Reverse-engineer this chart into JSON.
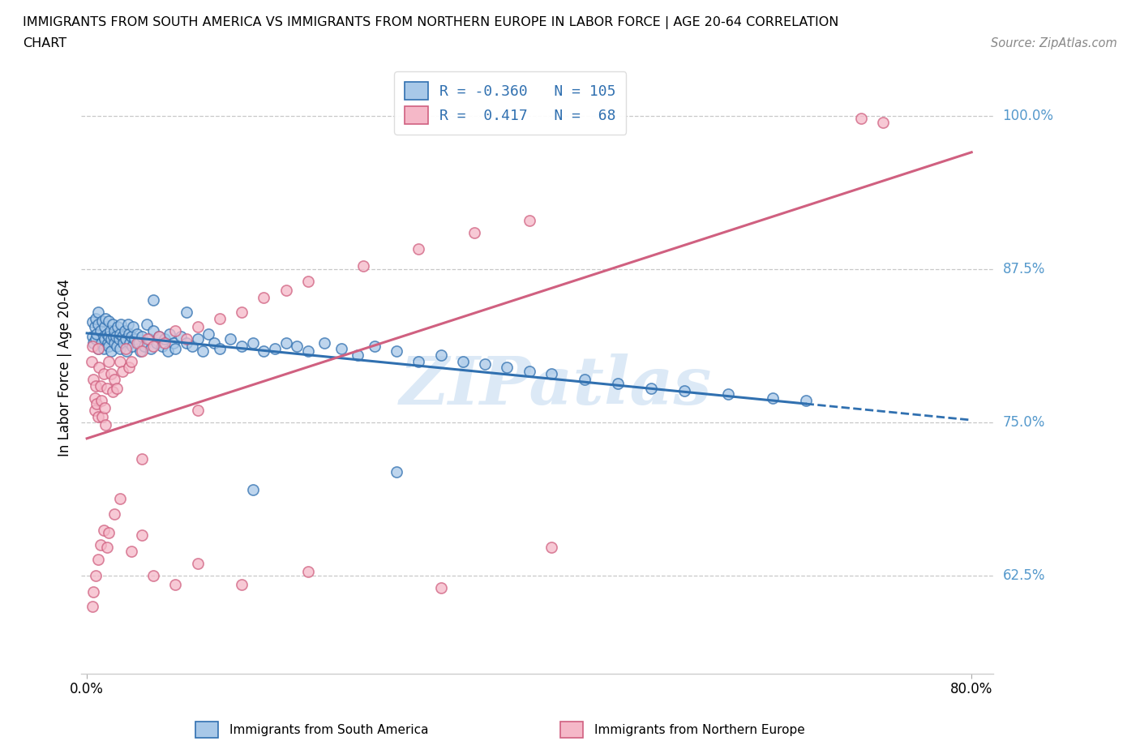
{
  "title_line1": "IMMIGRANTS FROM SOUTH AMERICA VS IMMIGRANTS FROM NORTHERN EUROPE IN LABOR FORCE | AGE 20-64 CORRELATION",
  "title_line2": "CHART",
  "source_text": "Source: ZipAtlas.com",
  "ylabel": "In Labor Force | Age 20-64",
  "xlim": [
    -0.005,
    0.82
  ],
  "ylim": [
    0.545,
    1.045
  ],
  "yticks": [
    0.625,
    0.75,
    0.875,
    1.0
  ],
  "ytick_labels": [
    "62.5%",
    "75.0%",
    "87.5%",
    "100.0%"
  ],
  "xtick_vals": [
    0.0,
    0.8
  ],
  "xtick_labels": [
    "0.0%",
    "80.0%"
  ],
  "legend_r_blue": "-0.360",
  "legend_n_blue": "105",
  "legend_r_pink": " 0.417",
  "legend_n_pink": " 68",
  "blue_face_color": "#a8c8e8",
  "blue_edge_color": "#3070b0",
  "pink_face_color": "#f5b8c8",
  "pink_edge_color": "#d06080",
  "blue_line_color": "#3070b0",
  "pink_line_color": "#d06080",
  "grid_color": "#c8c8c8",
  "right_label_color": "#5599cc",
  "watermark_color": "#c0d8f0",
  "bottom_legend_blue": "Immigrants from South America",
  "bottom_legend_pink": "Immigrants from Northern Europe",
  "blue_x": [
    0.005,
    0.005,
    0.006,
    0.007,
    0.008,
    0.008,
    0.009,
    0.01,
    0.01,
    0.01,
    0.012,
    0.013,
    0.014,
    0.015,
    0.015,
    0.016,
    0.016,
    0.017,
    0.018,
    0.019,
    0.02,
    0.02,
    0.02,
    0.021,
    0.022,
    0.022,
    0.023,
    0.024,
    0.025,
    0.025,
    0.026,
    0.027,
    0.028,
    0.029,
    0.03,
    0.03,
    0.031,
    0.032,
    0.033,
    0.034,
    0.035,
    0.036,
    0.037,
    0.038,
    0.039,
    0.04,
    0.041,
    0.042,
    0.043,
    0.045,
    0.047,
    0.048,
    0.05,
    0.052,
    0.054,
    0.056,
    0.058,
    0.06,
    0.063,
    0.065,
    0.068,
    0.07,
    0.073,
    0.075,
    0.078,
    0.08,
    0.085,
    0.09,
    0.095,
    0.1,
    0.105,
    0.11,
    0.115,
    0.12,
    0.13,
    0.14,
    0.15,
    0.16,
    0.17,
    0.18,
    0.19,
    0.2,
    0.215,
    0.23,
    0.245,
    0.26,
    0.28,
    0.3,
    0.32,
    0.34,
    0.36,
    0.38,
    0.4,
    0.42,
    0.45,
    0.48,
    0.51,
    0.54,
    0.58,
    0.62,
    0.65,
    0.28,
    0.15,
    0.09,
    0.06
  ],
  "blue_y": [
    0.82,
    0.832,
    0.815,
    0.828,
    0.818,
    0.835,
    0.822,
    0.81,
    0.83,
    0.84,
    0.825,
    0.815,
    0.833,
    0.82,
    0.81,
    0.828,
    0.818,
    0.835,
    0.822,
    0.815,
    0.82,
    0.833,
    0.812,
    0.825,
    0.818,
    0.808,
    0.83,
    0.82,
    0.815,
    0.825,
    0.82,
    0.812,
    0.828,
    0.818,
    0.822,
    0.81,
    0.83,
    0.82,
    0.815,
    0.825,
    0.818,
    0.808,
    0.83,
    0.822,
    0.815,
    0.82,
    0.812,
    0.828,
    0.818,
    0.822,
    0.815,
    0.808,
    0.82,
    0.812,
    0.83,
    0.818,
    0.81,
    0.825,
    0.815,
    0.82,
    0.812,
    0.818,
    0.808,
    0.822,
    0.815,
    0.81,
    0.82,
    0.815,
    0.812,
    0.818,
    0.808,
    0.822,
    0.815,
    0.81,
    0.818,
    0.812,
    0.815,
    0.808,
    0.81,
    0.815,
    0.812,
    0.808,
    0.815,
    0.81,
    0.805,
    0.812,
    0.808,
    0.8,
    0.805,
    0.8,
    0.798,
    0.795,
    0.792,
    0.79,
    0.785,
    0.782,
    0.778,
    0.776,
    0.773,
    0.77,
    0.768,
    0.71,
    0.695,
    0.84,
    0.85
  ],
  "pink_x": [
    0.004,
    0.005,
    0.006,
    0.007,
    0.007,
    0.008,
    0.009,
    0.01,
    0.01,
    0.011,
    0.012,
    0.013,
    0.014,
    0.015,
    0.016,
    0.017,
    0.018,
    0.02,
    0.022,
    0.023,
    0.025,
    0.027,
    0.03,
    0.032,
    0.035,
    0.038,
    0.04,
    0.045,
    0.05,
    0.055,
    0.06,
    0.065,
    0.07,
    0.08,
    0.09,
    0.1,
    0.12,
    0.14,
    0.16,
    0.18,
    0.2,
    0.25,
    0.3,
    0.35,
    0.4,
    0.7,
    0.72,
    0.005,
    0.006,
    0.008,
    0.01,
    0.012,
    0.015,
    0.018,
    0.02,
    0.025,
    0.03,
    0.04,
    0.05,
    0.06,
    0.08,
    0.1,
    0.14,
    0.2,
    0.32,
    0.42,
    0.1,
    0.05
  ],
  "pink_y": [
    0.8,
    0.812,
    0.785,
    0.77,
    0.76,
    0.78,
    0.765,
    0.81,
    0.755,
    0.795,
    0.78,
    0.768,
    0.755,
    0.79,
    0.762,
    0.748,
    0.778,
    0.8,
    0.79,
    0.775,
    0.785,
    0.778,
    0.8,
    0.792,
    0.81,
    0.795,
    0.8,
    0.815,
    0.808,
    0.818,
    0.812,
    0.82,
    0.815,
    0.825,
    0.818,
    0.828,
    0.835,
    0.84,
    0.852,
    0.858,
    0.865,
    0.878,
    0.892,
    0.905,
    0.915,
    0.998,
    0.995,
    0.6,
    0.612,
    0.625,
    0.638,
    0.65,
    0.662,
    0.648,
    0.66,
    0.675,
    0.688,
    0.645,
    0.658,
    0.625,
    0.618,
    0.635,
    0.618,
    0.628,
    0.615,
    0.648,
    0.76,
    0.72
  ]
}
